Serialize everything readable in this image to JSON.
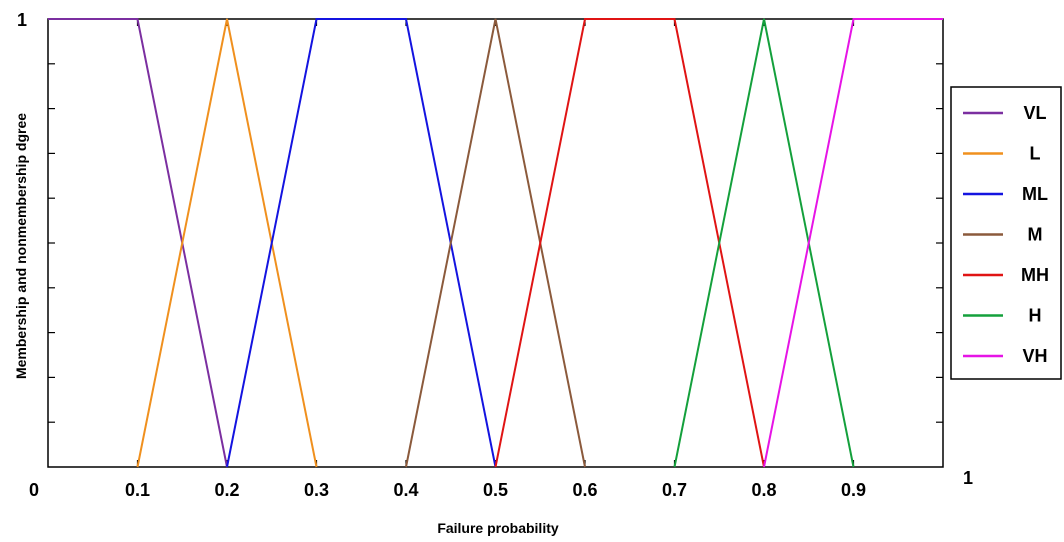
{
  "chart_data": {
    "type": "line",
    "title": "",
    "xlabel": "Failure probability",
    "ylabel": "Membership and nonmembership dgree",
    "xlim": [
      0,
      1
    ],
    "ylim": [
      0,
      1
    ],
    "x_ticks": [
      0.1,
      0.2,
      0.3,
      0.4,
      0.5,
      0.6,
      0.7,
      0.8,
      0.9
    ],
    "x_tick_labels": [
      "0.1",
      "0.2",
      "0.3",
      "0.4",
      "0.5",
      "0.6",
      "0.7",
      "0.8",
      "0.9"
    ],
    "y_top_label": "1",
    "corner_origin_label": "0",
    "corner_right_label": "1",
    "y_minor_ticks": [
      0.1,
      0.2,
      0.3,
      0.4,
      0.5,
      0.6,
      0.7,
      0.8,
      0.9
    ],
    "legend_position": "right",
    "grid": false,
    "series": [
      {
        "name": "VL",
        "color": "#7b2fa0",
        "x": [
          0,
          0.1,
          0.2
        ],
        "y": [
          1,
          1,
          0
        ]
      },
      {
        "name": "L",
        "color": "#f0901e",
        "x": [
          0.1,
          0.2,
          0.3
        ],
        "y": [
          0,
          1,
          0
        ]
      },
      {
        "name": "ML",
        "color": "#1414e0",
        "x": [
          0.2,
          0.3,
          0.4,
          0.5
        ],
        "y": [
          0,
          1,
          1,
          0
        ]
      },
      {
        "name": "M",
        "color": "#8b5a3c",
        "x": [
          0.4,
          0.5,
          0.6
        ],
        "y": [
          0,
          1,
          0
        ]
      },
      {
        "name": "MH",
        "color": "#e01414",
        "x": [
          0.5,
          0.6,
          0.7,
          0.8
        ],
        "y": [
          0,
          1,
          1,
          0
        ]
      },
      {
        "name": "H",
        "color": "#14a03c",
        "x": [
          0.7,
          0.8,
          0.9
        ],
        "y": [
          0,
          1,
          0
        ]
      },
      {
        "name": "VH",
        "color": "#e614e6",
        "x": [
          0.8,
          0.9,
          1.0
        ],
        "y": [
          0,
          1,
          1
        ]
      }
    ]
  }
}
